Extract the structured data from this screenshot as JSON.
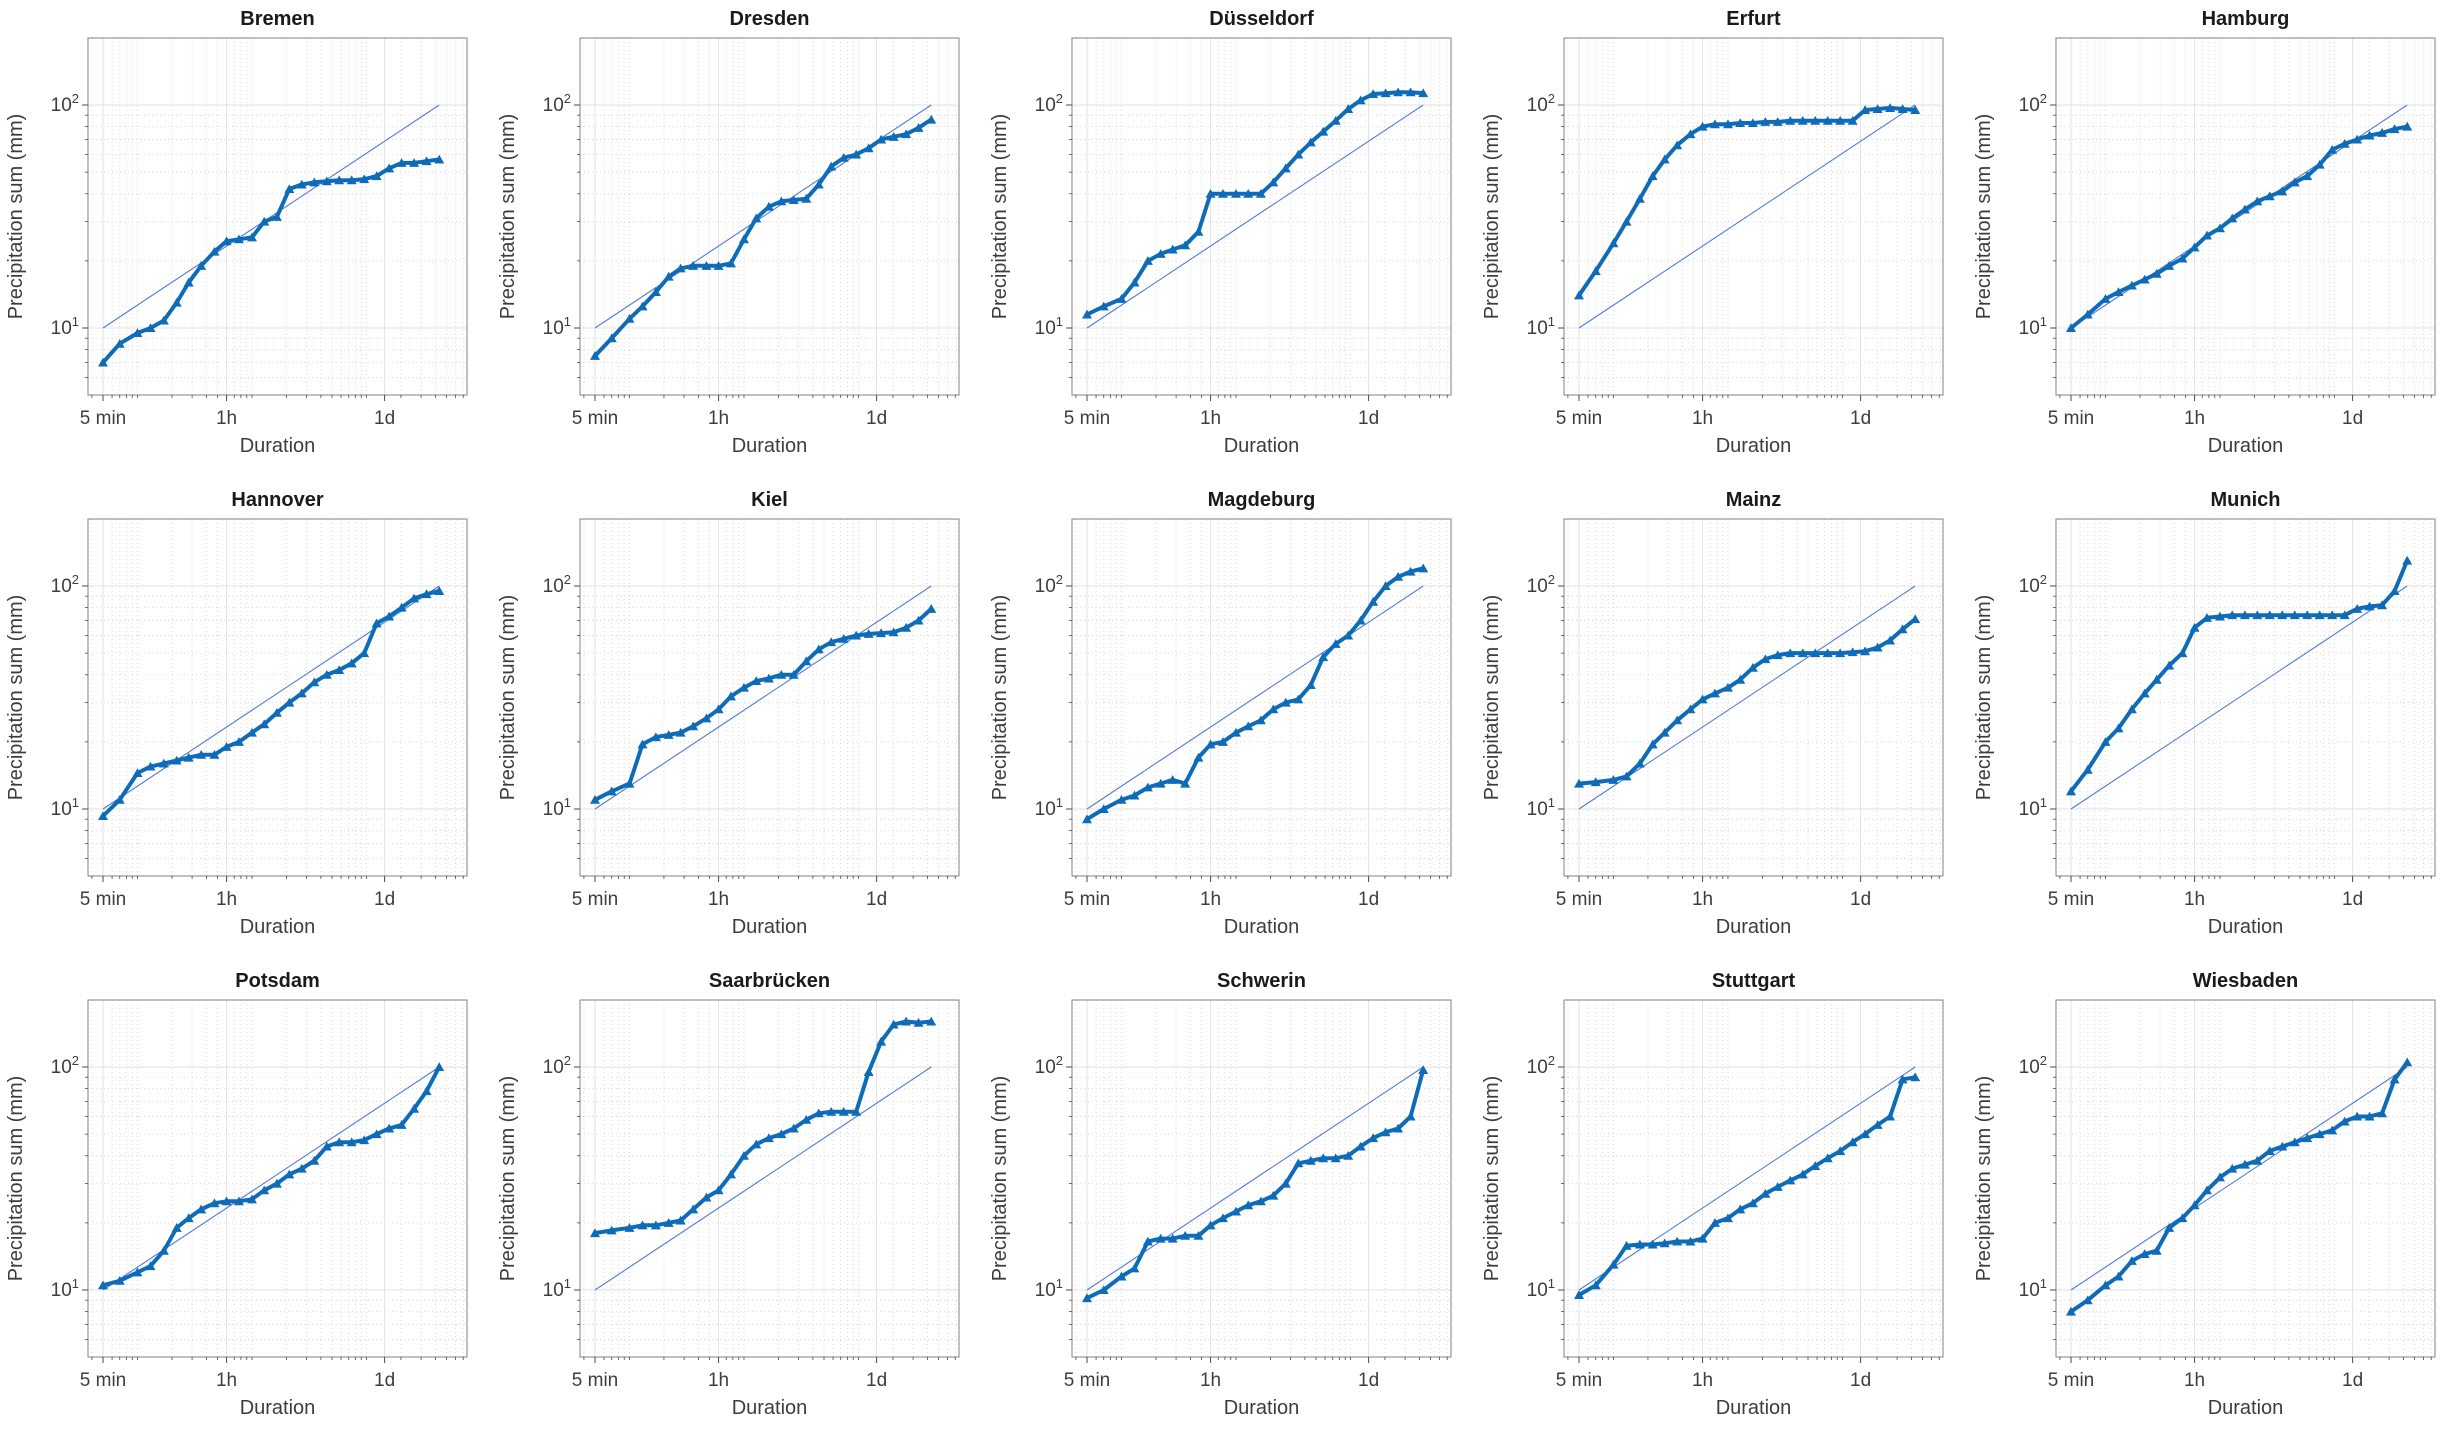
{
  "chart_data": {
    "type": "line",
    "title": "Precipitation sum vs duration for German cities",
    "x_scale": "log",
    "y_scale": "log",
    "xlabel": "Duration",
    "ylabel": "Precipitation sum (mm)",
    "grid": "on",
    "legend": "none",
    "marker": "triangle-up",
    "xticks": {
      "values_min": [
        5,
        60,
        1440
      ],
      "labels": [
        "5 min",
        "1h",
        "1d"
      ]
    },
    "yticks": {
      "values_mm": [
        10,
        100
      ],
      "base": "10",
      "exponents": [
        "1",
        "2"
      ]
    },
    "x_minor_min": [
      4,
      6,
      7,
      8,
      9,
      10,
      20,
      30,
      40,
      50,
      70,
      80,
      90,
      100,
      200,
      300,
      400,
      500,
      600,
      700,
      800,
      900,
      1000,
      2000,
      3000,
      4000,
      5000,
      6000,
      7000
    ],
    "y_minor_mm": [
      6,
      7,
      8,
      9,
      20,
      30,
      40,
      50,
      60,
      70,
      80,
      90
    ],
    "axis_range": {
      "xmin_min": 3.7,
      "xmax_min": 7550,
      "ymin_mm": 5,
      "ymax_mm": 200
    },
    "ref_line": {
      "x_min": [
        5,
        4320
      ],
      "y_mm": [
        10,
        100
      ]
    },
    "colors": {
      "data_line": "#0e6bb8",
      "ref_line": "#4f7bd9",
      "grid_minor": "#d9d9d9",
      "grid_major": "#e2e2e2",
      "axis_box": "#818181",
      "tick_mark": "#4a4a4a",
      "title_text": "#1a1a1a",
      "label_text": "#3d3d3d"
    },
    "durations_min": [
      5,
      7,
      10,
      13,
      17,
      22,
      28,
      36,
      47,
      60,
      77,
      100,
      128,
      165,
      212,
      272,
      350,
      450,
      578,
      743,
      955,
      1227,
      1577,
      2027,
      2605,
      3348,
      4320
    ],
    "charts": [
      {
        "title": "Bremen",
        "values_mm": [
          7,
          8.5,
          9.5,
          10,
          10.8,
          13,
          16,
          19,
          22,
          24.5,
          25,
          25.5,
          30,
          31.5,
          42,
          44,
          45,
          45.5,
          46,
          46,
          46.5,
          48,
          52,
          55,
          55,
          56,
          57
        ]
      },
      {
        "title": "Dresden",
        "values_mm": [
          7.5,
          9,
          11,
          12.5,
          14.5,
          17,
          18.5,
          19,
          19,
          19,
          19.5,
          25,
          31,
          35,
          37,
          37.5,
          38,
          44,
          53,
          58,
          60,
          64,
          70,
          72,
          74,
          79,
          86
        ]
      },
      {
        "title": "Düsseldorf",
        "values_mm": [
          11.5,
          12.5,
          13.5,
          16,
          20,
          21.5,
          22.5,
          23.5,
          27,
          40,
          40,
          40,
          40,
          40,
          45,
          52,
          60,
          68,
          76,
          85,
          96,
          105,
          112,
          113,
          114,
          114,
          113
        ]
      },
      {
        "title": "Erfurt",
        "values_mm": [
          14,
          18,
          24,
          30,
          38,
          48,
          57,
          66,
          74,
          80,
          82,
          82,
          83,
          83,
          84,
          84,
          85,
          85,
          85,
          85,
          85,
          85,
          95,
          96,
          97,
          96,
          95
        ]
      },
      {
        "title": "Hamburg",
        "values_mm": [
          10,
          11.5,
          13.5,
          14.5,
          15.5,
          16.5,
          17.5,
          19,
          20.5,
          23,
          26,
          28,
          31,
          34,
          37,
          39,
          41,
          45,
          48,
          54,
          63,
          67,
          70,
          73,
          75,
          78,
          80
        ]
      },
      {
        "title": "Hannover",
        "values_mm": [
          9.3,
          11,
          14.5,
          15.5,
          16,
          16.5,
          17,
          17.5,
          17.5,
          19,
          20,
          22,
          24,
          27,
          30,
          33,
          37,
          40,
          42,
          45,
          50,
          68,
          73,
          80,
          88,
          92,
          95
        ]
      },
      {
        "title": "Kiel",
        "values_mm": [
          11,
          12,
          13,
          19.5,
          21,
          21.5,
          22,
          23.5,
          25.5,
          28,
          32,
          35,
          37.5,
          38.5,
          40,
          40,
          46,
          52,
          56,
          58,
          60,
          61,
          61.5,
          62,
          65,
          70,
          79
        ]
      },
      {
        "title": "Magdeburg",
        "values_mm": [
          9,
          10,
          11,
          11.5,
          12.5,
          13,
          13.5,
          13,
          17,
          19.5,
          20,
          22,
          23.5,
          25,
          28,
          30,
          31,
          36,
          48,
          55,
          60,
          70,
          85,
          100,
          110,
          116,
          120
        ]
      },
      {
        "title": "Mainz",
        "values_mm": [
          13,
          13.2,
          13.5,
          14,
          16,
          19.5,
          22,
          25,
          28,
          31,
          33,
          35,
          38,
          43,
          47,
          49,
          50,
          50,
          50,
          50,
          50,
          50.5,
          51,
          53,
          57,
          64,
          71
        ]
      },
      {
        "title": "Munich",
        "values_mm": [
          12,
          15,
          20,
          23,
          28,
          33,
          38,
          44,
          50,
          65,
          72,
          73,
          74,
          74,
          74,
          74,
          74,
          74,
          74,
          74,
          74,
          74,
          79,
          81,
          82,
          95,
          130
        ]
      },
      {
        "title": "Potsdam",
        "values_mm": [
          10.5,
          11,
          12,
          12.8,
          15,
          19,
          21,
          23,
          24.5,
          25,
          25,
          25.5,
          28,
          30,
          33,
          35,
          38,
          44,
          46,
          46,
          47,
          50,
          53,
          55,
          65,
          78,
          100
        ]
      },
      {
        "title": "Saarbrücken",
        "values_mm": [
          18,
          18.5,
          19,
          19.5,
          19.5,
          20,
          20.5,
          23,
          26,
          28,
          33,
          40,
          45,
          48,
          50,
          53,
          58,
          62,
          63,
          63,
          63,
          95,
          130,
          155,
          160,
          158,
          160
        ]
      },
      {
        "title": "Schwerin",
        "values_mm": [
          9.2,
          10,
          11.5,
          12.5,
          16.5,
          17,
          17,
          17.5,
          17.5,
          19.5,
          21,
          22.5,
          24,
          25,
          26.5,
          30,
          37,
          38,
          39,
          39,
          40,
          44,
          48,
          51,
          53,
          60,
          97
        ]
      },
      {
        "title": "Stuttgart",
        "values_mm": [
          9.5,
          10.5,
          13,
          15.8,
          16,
          16,
          16.2,
          16.5,
          16.5,
          17,
          20,
          21,
          23,
          24.5,
          27,
          29,
          31,
          33,
          36,
          39,
          42,
          46,
          50,
          55,
          60,
          88,
          90
        ]
      },
      {
        "title": "Wiesbaden",
        "values_mm": [
          8,
          9,
          10.5,
          11.5,
          13.5,
          14.5,
          15,
          19,
          21,
          24,
          28,
          32,
          35,
          36.5,
          38,
          42,
          44,
          46,
          48,
          50,
          52,
          57,
          60,
          60,
          62,
          88,
          105
        ]
      }
    ]
  }
}
